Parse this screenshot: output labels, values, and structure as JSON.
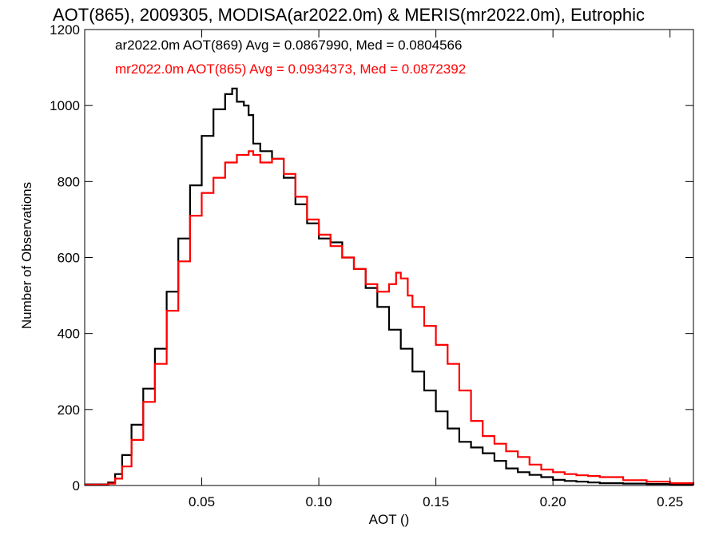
{
  "chart_data": {
    "type": "line",
    "title": "AOT(865), 2009305, MODISA(ar2022.0m) & MERIS(mr2022.0m), Eutrophic",
    "xlabel": "AOT ()",
    "ylabel": "Number of Observations",
    "xlim": [
      0.0,
      0.26
    ],
    "ylim": [
      0,
      1200
    ],
    "xticks": [
      0.05,
      0.1,
      0.15,
      0.2,
      0.25
    ],
    "xtick_labels": [
      "0.05",
      "0.10",
      "0.15",
      "0.20",
      "0.25"
    ],
    "yticks": [
      0,
      200,
      400,
      600,
      800,
      1000,
      1200
    ],
    "ytick_labels": [
      "0",
      "200",
      "400",
      "600",
      "800",
      "1000",
      "1200"
    ],
    "grid": false,
    "legend_placement": "top-left",
    "series": [
      {
        "name": "ar2022.0m AOT(869) Avg = 0.0867990, Med = 0.0804566",
        "color": "#000000",
        "x": [
          0.0,
          0.005,
          0.01,
          0.013,
          0.016,
          0.02,
          0.025,
          0.03,
          0.035,
          0.04,
          0.045,
          0.05,
          0.055,
          0.06,
          0.063,
          0.065,
          0.068,
          0.07,
          0.072,
          0.075,
          0.08,
          0.085,
          0.09,
          0.095,
          0.1,
          0.105,
          0.11,
          0.115,
          0.12,
          0.125,
          0.13,
          0.135,
          0.14,
          0.145,
          0.15,
          0.155,
          0.16,
          0.165,
          0.17,
          0.175,
          0.18,
          0.185,
          0.19,
          0.195,
          0.2,
          0.205,
          0.21,
          0.215,
          0.22,
          0.23,
          0.24,
          0.25,
          0.26
        ],
        "values": [
          3,
          3,
          8,
          30,
          80,
          160,
          255,
          360,
          510,
          650,
          790,
          920,
          990,
          1030,
          1045,
          1010,
          1000,
          975,
          900,
          880,
          860,
          810,
          740,
          690,
          650,
          640,
          600,
          570,
          520,
          470,
          410,
          360,
          300,
          250,
          195,
          150,
          115,
          100,
          85,
          65,
          45,
          35,
          28,
          22,
          15,
          12,
          10,
          8,
          6,
          5,
          4,
          3,
          2
        ]
      },
      {
        "name": "mr2022.0m AOT(865) Avg = 0.0934373, Med = 0.0872392",
        "color": "#ff0000",
        "x": [
          0.0,
          0.005,
          0.01,
          0.013,
          0.016,
          0.02,
          0.025,
          0.03,
          0.035,
          0.04,
          0.045,
          0.05,
          0.055,
          0.06,
          0.065,
          0.07,
          0.072,
          0.075,
          0.08,
          0.085,
          0.09,
          0.095,
          0.1,
          0.105,
          0.11,
          0.115,
          0.12,
          0.125,
          0.13,
          0.133,
          0.135,
          0.138,
          0.14,
          0.145,
          0.15,
          0.155,
          0.16,
          0.165,
          0.17,
          0.175,
          0.18,
          0.185,
          0.19,
          0.195,
          0.2,
          0.205,
          0.21,
          0.215,
          0.22,
          0.23,
          0.24,
          0.25,
          0.26
        ],
        "values": [
          2,
          2,
          5,
          18,
          50,
          120,
          220,
          320,
          460,
          590,
          710,
          770,
          810,
          850,
          870,
          880,
          870,
          850,
          860,
          820,
          760,
          700,
          660,
          630,
          600,
          570,
          530,
          510,
          530,
          560,
          545,
          500,
          470,
          420,
          370,
          320,
          250,
          170,
          130,
          110,
          90,
          75,
          55,
          42,
          35,
          30,
          27,
          25,
          22,
          14,
          10,
          6,
          4
        ]
      }
    ]
  }
}
